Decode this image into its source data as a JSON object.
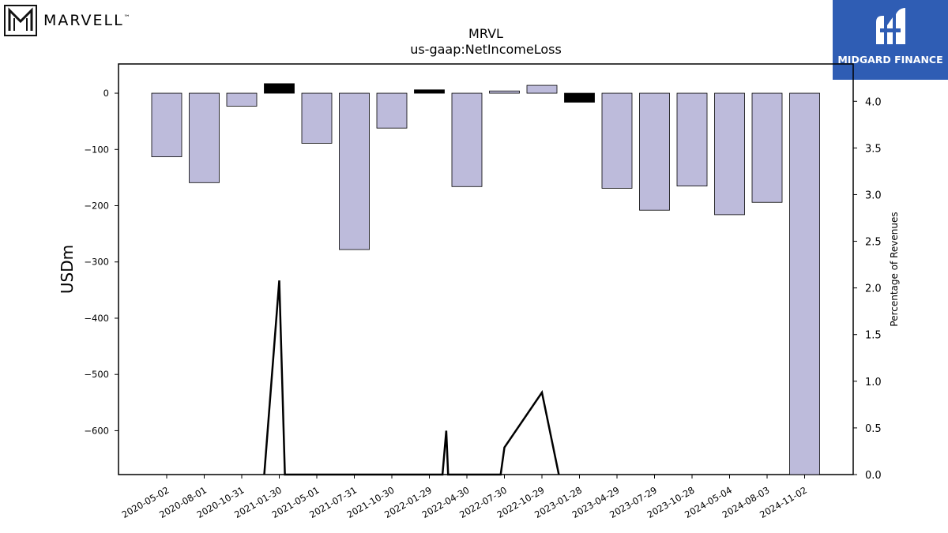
{
  "brand_left": {
    "name": "MARVELL",
    "trademark": "™",
    "icon": "marvell-logo-icon"
  },
  "brand_right": {
    "name": "MIDGARD FINANCE",
    "icon": "midgard-logo-icon",
    "color": "#2f5db4"
  },
  "chart_data": {
    "type": "bar",
    "title": "MRVL",
    "subtitle": "us-gaap:NetIncomeLoss",
    "ylabel": "USDm",
    "y2label": "Percentage of Revenues",
    "ylim": [
      -678,
      52
    ],
    "y2lim": [
      0,
      4.4
    ],
    "yticks": [
      0,
      -100,
      -200,
      -300,
      -400,
      -500,
      -600
    ],
    "y2ticks": [
      "0.0",
      "0.5",
      "1.0",
      "1.5",
      "2.0",
      "2.5",
      "3.0",
      "3.5",
      "4.0"
    ],
    "categories": [
      "2020-05-02",
      "2020-08-01",
      "2020-10-31",
      "2021-01-30",
      "2021-05-01",
      "2021-07-31",
      "2021-10-30",
      "2022-01-29",
      "2022-04-30",
      "2022-07-30",
      "2022-10-29",
      "2023-01-28",
      "2023-04-29",
      "2023-07-29",
      "2023-10-28",
      "2024-05-04",
      "2024-08-03",
      "2024-11-02"
    ],
    "series": [
      {
        "kind": "bar",
        "axis": "left",
        "values": [
          -113,
          -159,
          -23,
          17,
          -89,
          -278,
          -62,
          6,
          -166,
          4,
          14,
          -16,
          -169,
          -208,
          -165,
          -216,
          -194,
          -678
        ],
        "fill_negative": "#bdbbdb",
        "fill_positive_fraction": "#bdbbdb",
        "highlight_color": "#000000",
        "highlight_indices": [
          3,
          7,
          11
        ]
      },
      {
        "kind": "line",
        "axis": "right",
        "color": "#000000",
        "x": [
          2.6,
          3,
          3.15,
          3.15,
          7.35,
          7.35,
          7.45,
          7.45,
          7.5,
          8.9,
          8.9,
          9.0,
          10.0,
          10.45
        ],
        "values": [
          0,
          2.08,
          0,
          0,
          0,
          0,
          0.47,
          0.47,
          0,
          0,
          0,
          0.29,
          0.88,
          0
        ]
      }
    ],
    "grid": false
  }
}
